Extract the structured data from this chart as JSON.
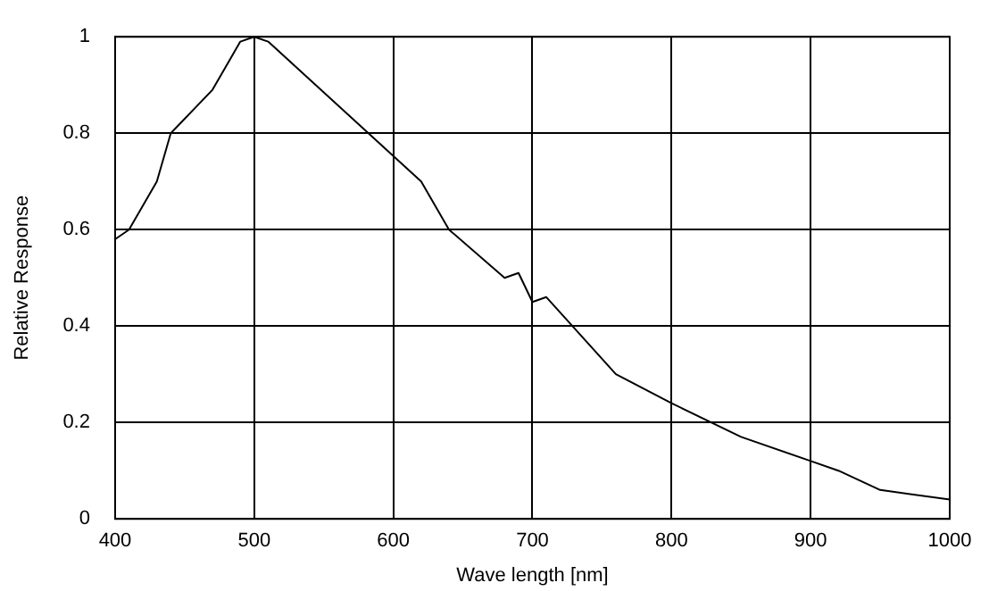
{
  "chart_data": {
    "type": "line",
    "xlabel": "Wave length [nm]",
    "ylabel": "Relative Response",
    "x": [
      400,
      410,
      430,
      440,
      470,
      490,
      500,
      510,
      620,
      640,
      680,
      690,
      700,
      710,
      760,
      800,
      850,
      900,
      920,
      950,
      1000
    ],
    "series": [
      {
        "color": "#000000",
        "values": [
          0.58,
          0.6,
          0.7,
          0.8,
          0.89,
          0.99,
          1,
          0.99,
          0.7,
          0.6,
          0.5,
          0.51,
          0.45,
          0.46,
          0.3,
          0.24,
          0.17,
          0.12,
          0.1,
          0.06,
          0.04
        ]
      }
    ],
    "xlim": [
      400,
      1000
    ],
    "xticks": [
      400,
      500,
      600,
      700,
      800,
      900,
      1000
    ],
    "ylim": [
      0,
      1
    ],
    "yticks": [
      0,
      0.2,
      0.4,
      0.6,
      0.8,
      1
    ],
    "grid": true,
    "legend": false,
    "marker": "none",
    "line_style": "solid"
  }
}
